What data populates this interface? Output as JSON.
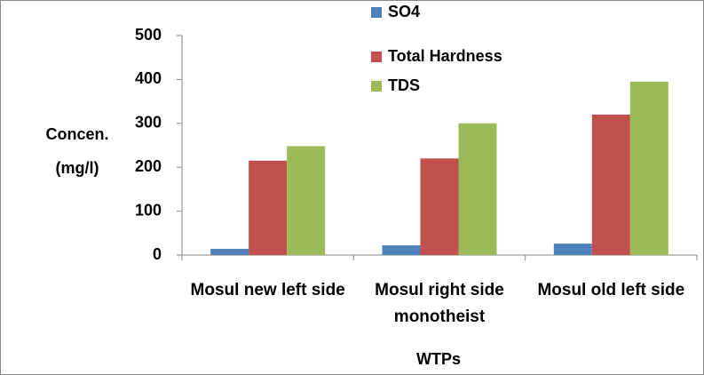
{
  "chart_data": {
    "type": "bar",
    "categories": [
      "Mosul new left side",
      "Mosul right side monotheist",
      "Mosul old left side"
    ],
    "series": [
      {
        "name": "SO4",
        "color": "#4f81bd",
        "values": [
          14,
          22,
          26
        ]
      },
      {
        "name": "Total Hardness",
        "color": "#c0504d",
        "values": [
          215,
          220,
          320
        ]
      },
      {
        "name": "TDS",
        "color": "#9bbb59",
        "values": [
          248,
          300,
          395
        ]
      }
    ],
    "ylabel": [
      "Concen.",
      "(mg/l)"
    ],
    "xlabel": "WTPs",
    "ylim": [
      0,
      500
    ],
    "yticks": [
      0,
      100,
      200,
      300,
      400,
      500
    ],
    "grid": false,
    "legend": "top"
  }
}
